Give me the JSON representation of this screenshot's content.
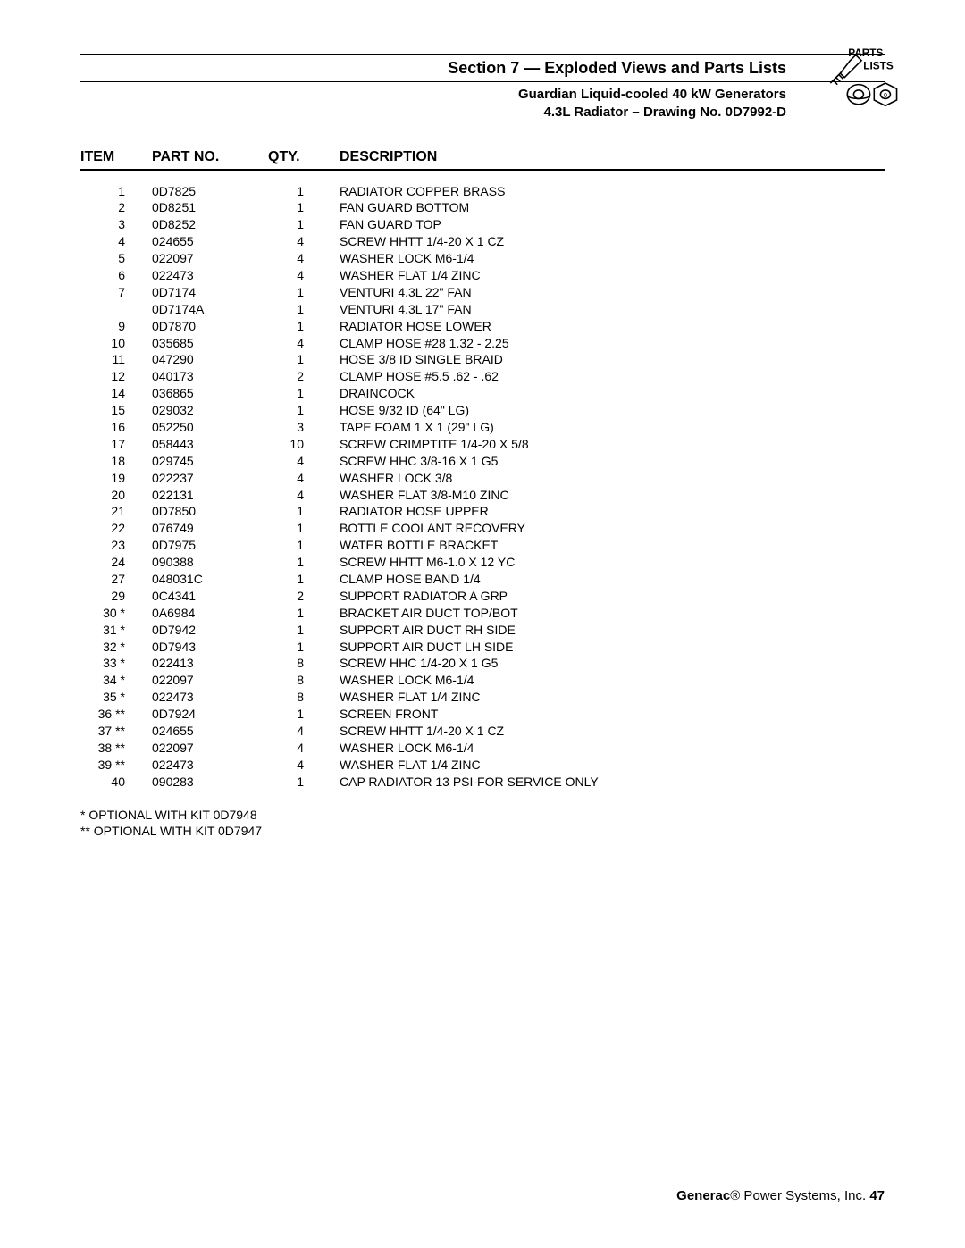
{
  "header": {
    "section_title": "Section 7 — Exploded Views and Parts Lists",
    "subtitle1": "Guardian Liquid-cooled 40 kW Generators",
    "subtitle2": "4.3L Radiator – Drawing No. 0D7992-D",
    "logo_top": "PARTS",
    "logo_bottom": "LISTS"
  },
  "columns": {
    "item": "ITEM",
    "part": "PART NO.",
    "qty": "QTY.",
    "desc": "DESCRIPTION"
  },
  "rows": [
    {
      "item": "1",
      "part": "0D7825",
      "qty": "1",
      "desc": "RADIATOR COPPER BRASS"
    },
    {
      "item": "2",
      "part": "0D8251",
      "qty": "1",
      "desc": "FAN GUARD BOTTOM"
    },
    {
      "item": "3",
      "part": "0D8252",
      "qty": "1",
      "desc": "FAN GUARD TOP"
    },
    {
      "item": "4",
      "part": "024655",
      "qty": "4",
      "desc": "SCREW HHTT 1/4-20 X 1 CZ"
    },
    {
      "item": "5",
      "part": "022097",
      "qty": "4",
      "desc": "WASHER LOCK M6-1/4"
    },
    {
      "item": "6",
      "part": "022473",
      "qty": "4",
      "desc": "WASHER FLAT 1/4 ZINC"
    },
    {
      "item": "7",
      "part": "0D7174",
      "qty": "1",
      "desc": "VENTURI 4.3L 22\" FAN"
    },
    {
      "item": "",
      "part": "0D7174A",
      "qty": "1",
      "desc": "VENTURI 4.3L 17\" FAN"
    },
    {
      "item": "9",
      "part": "0D7870",
      "qty": "1",
      "desc": "RADIATOR HOSE LOWER"
    },
    {
      "item": "10",
      "part": "035685",
      "qty": "4",
      "desc": "CLAMP HOSE #28 1.32 - 2.25"
    },
    {
      "item": "11",
      "part": "047290",
      "qty": "1",
      "desc": "HOSE 3/8 ID SINGLE BRAID"
    },
    {
      "item": "12",
      "part": "040173",
      "qty": "2",
      "desc": "CLAMP HOSE #5.5 .62 - .62"
    },
    {
      "item": "14",
      "part": "036865",
      "qty": "1",
      "desc": "DRAINCOCK"
    },
    {
      "item": "15",
      "part": "029032",
      "qty": "1",
      "desc": "HOSE 9/32 ID (64\" LG)"
    },
    {
      "item": "16",
      "part": "052250",
      "qty": "3",
      "desc": "TAPE FOAM 1 X 1 (29\" LG)"
    },
    {
      "item": "17",
      "part": "058443",
      "qty": "10",
      "desc": "SCREW CRIMPTITE 1/4-20 X 5/8"
    },
    {
      "item": "18",
      "part": "029745",
      "qty": "4",
      "desc": "SCREW HHC 3/8-16 X 1 G5"
    },
    {
      "item": "19",
      "part": "022237",
      "qty": "4",
      "desc": "WASHER LOCK 3/8"
    },
    {
      "item": "20",
      "part": "022131",
      "qty": "4",
      "desc": "WASHER FLAT 3/8-M10 ZINC"
    },
    {
      "item": "21",
      "part": "0D7850",
      "qty": "1",
      "desc": "RADIATOR HOSE UPPER"
    },
    {
      "item": "22",
      "part": "076749",
      "qty": "1",
      "desc": "BOTTLE COOLANT RECOVERY"
    },
    {
      "item": "23",
      "part": "0D7975",
      "qty": "1",
      "desc": "WATER BOTTLE BRACKET"
    },
    {
      "item": "24",
      "part": "090388",
      "qty": "1",
      "desc": "SCREW HHTT M6-1.0 X 12 YC"
    },
    {
      "item": "27",
      "part": "048031C",
      "qty": "1",
      "desc": "CLAMP HOSE BAND 1/4"
    },
    {
      "item": "29",
      "part": "0C4341",
      "qty": "2",
      "desc": "SUPPORT RADIATOR A GRP"
    },
    {
      "item": "30 *",
      "part": "0A6984",
      "qty": "1",
      "desc": "BRACKET AIR DUCT TOP/BOT"
    },
    {
      "item": "31 *",
      "part": "0D7942",
      "qty": "1",
      "desc": "SUPPORT AIR DUCT RH SIDE"
    },
    {
      "item": "32 *",
      "part": "0D7943",
      "qty": "1",
      "desc": "SUPPORT AIR DUCT LH SIDE"
    },
    {
      "item": "33 *",
      "part": "022413",
      "qty": "8",
      "desc": "SCREW HHC 1/4-20 X 1 G5"
    },
    {
      "item": "34 *",
      "part": "022097",
      "qty": "8",
      "desc": "WASHER LOCK M6-1/4"
    },
    {
      "item": "35 *",
      "part": "022473",
      "qty": "8",
      "desc": "WASHER FLAT 1/4 ZINC"
    },
    {
      "item": "36 **",
      "part": "0D7924",
      "qty": "1",
      "desc": "SCREEN FRONT"
    },
    {
      "item": "37 **",
      "part": "024655",
      "qty": "4",
      "desc": "SCREW HHTT 1/4-20 X 1 CZ"
    },
    {
      "item": "38 **",
      "part": "022097",
      "qty": "4",
      "desc": "WASHER LOCK M6-1/4"
    },
    {
      "item": "39 **",
      "part": "022473",
      "qty": "4",
      "desc": "WASHER FLAT 1/4 ZINC"
    },
    {
      "item": "40",
      "part": "090283",
      "qty": "1",
      "desc": "CAP RADIATOR 13 PSI-FOR SERVICE ONLY"
    }
  ],
  "notes": {
    "line1": "* OPTIONAL WITH KIT 0D7948",
    "line2": "** OPTIONAL WITH KIT 0D7947"
  },
  "footer": {
    "company": "Generac",
    "reg": "®",
    "rest": " Power Systems, Inc.   ",
    "page": "47"
  }
}
